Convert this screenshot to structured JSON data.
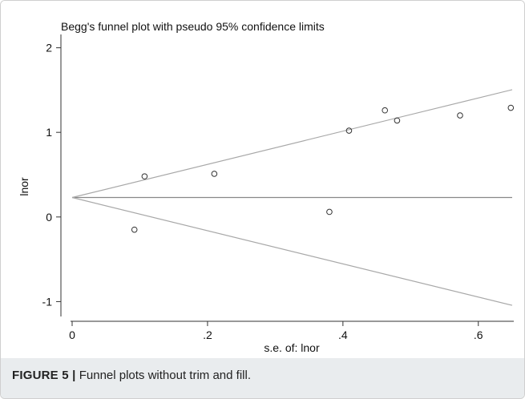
{
  "caption": {
    "label": "FIGURE 5 |",
    "text": "Funnel plots without trim and fill."
  },
  "chart_data": {
    "type": "scatter",
    "title": "Begg's funnel plot with pseudo 95% confidence limits",
    "xlabel": "s.e. of: lnor",
    "ylabel": "lnor",
    "xlim": [
      0,
      0.65
    ],
    "ylim": [
      -1.1,
      2.1
    ],
    "xticks": [
      0,
      0.2,
      0.4,
      0.6
    ],
    "xtick_labels": [
      "0",
      ".2",
      ".4",
      ".6"
    ],
    "yticks": [
      -1,
      0,
      1,
      2
    ],
    "ytick_labels": [
      "-1",
      "0",
      "1",
      "2"
    ],
    "grid": false,
    "pooled_estimate": 0.23,
    "limit_multiplier": 1.96,
    "points": [
      {
        "x": 0.092,
        "y": -0.15
      },
      {
        "x": 0.107,
        "y": 0.48
      },
      {
        "x": 0.21,
        "y": 0.51
      },
      {
        "x": 0.38,
        "y": 0.06
      },
      {
        "x": 0.409,
        "y": 1.02
      },
      {
        "x": 0.462,
        "y": 1.26
      },
      {
        "x": 0.48,
        "y": 1.14
      },
      {
        "x": 0.573,
        "y": 1.2
      },
      {
        "x": 0.648,
        "y": 1.29
      }
    ],
    "colors": {
      "marker": "#333333",
      "line": "#a8a8a8",
      "axis": "#333333"
    }
  }
}
